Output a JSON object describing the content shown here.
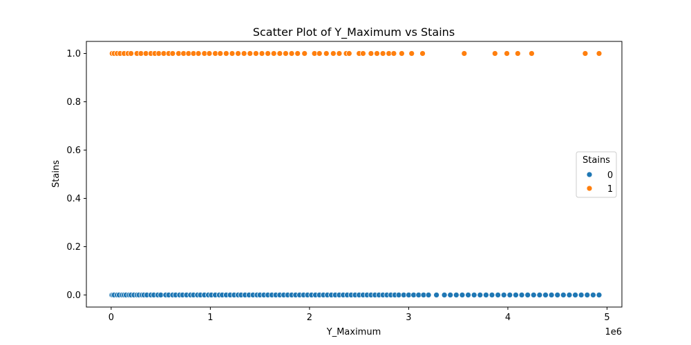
{
  "chart_data": {
    "type": "scatter",
    "title": "Scatter Plot of Y_Maximum vs Stains",
    "xlabel": "Y_Maximum",
    "ylabel": "Stains",
    "x_offset_label": "1e6",
    "xlim": [
      -250000,
      5150000
    ],
    "ylim": [
      -0.05,
      1.05
    ],
    "x_ticks": [
      0,
      1000000,
      2000000,
      3000000,
      4000000,
      5000000
    ],
    "x_tick_labels": [
      "0",
      "1",
      "2",
      "3",
      "4",
      "5"
    ],
    "y_ticks": [
      0.0,
      0.2,
      0.4,
      0.6,
      0.8,
      1.0
    ],
    "y_tick_labels": [
      "0.0",
      "0.2",
      "0.4",
      "0.6",
      "0.8",
      "1.0"
    ],
    "grid": false,
    "legend": {
      "title": "Stains",
      "placement": "center-right",
      "entries": [
        "0",
        "1"
      ]
    },
    "series": [
      {
        "name": "0",
        "color": "#1f77b4",
        "points": [
          [
            5000,
            0
          ],
          [
            15000,
            0
          ],
          [
            30000,
            0
          ],
          [
            60000,
            0
          ],
          [
            80000,
            0
          ],
          [
            110000,
            0
          ],
          [
            130000,
            0
          ],
          [
            150000,
            0
          ],
          [
            180000,
            0
          ],
          [
            200000,
            0
          ],
          [
            230000,
            0
          ],
          [
            260000,
            0
          ],
          [
            280000,
            0
          ],
          [
            310000,
            0
          ],
          [
            330000,
            0
          ],
          [
            360000,
            0
          ],
          [
            400000,
            0
          ],
          [
            430000,
            0
          ],
          [
            470000,
            0
          ],
          [
            500000,
            0
          ],
          [
            550000,
            0
          ],
          [
            580000,
            0
          ],
          [
            620000,
            0
          ],
          [
            650000,
            0
          ],
          [
            690000,
            0
          ],
          [
            720000,
            0
          ],
          [
            760000,
            0
          ],
          [
            800000,
            0
          ],
          [
            830000,
            0
          ],
          [
            870000,
            0
          ],
          [
            900000,
            0
          ],
          [
            940000,
            0
          ],
          [
            980000,
            0
          ],
          [
            1010000,
            0
          ],
          [
            1050000,
            0
          ],
          [
            1090000,
            0
          ],
          [
            1120000,
            0
          ],
          [
            1160000,
            0
          ],
          [
            1200000,
            0
          ],
          [
            1240000,
            0
          ],
          [
            1280000,
            0
          ],
          [
            1310000,
            0
          ],
          [
            1350000,
            0
          ],
          [
            1390000,
            0
          ],
          [
            1430000,
            0
          ],
          [
            1470000,
            0
          ],
          [
            1500000,
            0
          ],
          [
            1540000,
            0
          ],
          [
            1580000,
            0
          ],
          [
            1620000,
            0
          ],
          [
            1660000,
            0
          ],
          [
            1700000,
            0
          ],
          [
            1740000,
            0
          ],
          [
            1780000,
            0
          ],
          [
            1820000,
            0
          ],
          [
            1860000,
            0
          ],
          [
            1900000,
            0
          ],
          [
            1940000,
            0
          ],
          [
            1980000,
            0
          ],
          [
            2020000,
            0
          ],
          [
            2060000,
            0
          ],
          [
            2100000,
            0
          ],
          [
            2140000,
            0
          ],
          [
            2180000,
            0
          ],
          [
            2220000,
            0
          ],
          [
            2260000,
            0
          ],
          [
            2300000,
            0
          ],
          [
            2340000,
            0
          ],
          [
            2380000,
            0
          ],
          [
            2420000,
            0
          ],
          [
            2460000,
            0
          ],
          [
            2500000,
            0
          ],
          [
            2540000,
            0
          ],
          [
            2580000,
            0
          ],
          [
            2620000,
            0
          ],
          [
            2660000,
            0
          ],
          [
            2700000,
            0
          ],
          [
            2740000,
            0
          ],
          [
            2780000,
            0
          ],
          [
            2820000,
            0
          ],
          [
            2860000,
            0
          ],
          [
            2900000,
            0
          ],
          [
            2950000,
            0
          ],
          [
            3000000,
            0
          ],
          [
            3050000,
            0
          ],
          [
            3100000,
            0
          ],
          [
            3150000,
            0
          ],
          [
            3200000,
            0
          ],
          [
            3280000,
            0
          ],
          [
            3360000,
            0
          ],
          [
            3420000,
            0
          ],
          [
            3480000,
            0
          ],
          [
            3540000,
            0
          ],
          [
            3600000,
            0
          ],
          [
            3660000,
            0
          ],
          [
            3720000,
            0
          ],
          [
            3780000,
            0
          ],
          [
            3840000,
            0
          ],
          [
            3900000,
            0
          ],
          [
            3960000,
            0
          ],
          [
            4020000,
            0
          ],
          [
            4080000,
            0
          ],
          [
            4140000,
            0
          ],
          [
            4200000,
            0
          ],
          [
            4260000,
            0
          ],
          [
            4320000,
            0
          ],
          [
            4380000,
            0
          ],
          [
            4440000,
            0
          ],
          [
            4500000,
            0
          ],
          [
            4560000,
            0
          ],
          [
            4620000,
            0
          ],
          [
            4680000,
            0
          ],
          [
            4740000,
            0
          ],
          [
            4800000,
            0
          ],
          [
            4860000,
            0
          ],
          [
            4920000,
            0
          ]
        ]
      },
      {
        "name": "1",
        "color": "#ff7f0e",
        "points": [
          [
            10000,
            1
          ],
          [
            30000,
            1
          ],
          [
            60000,
            1
          ],
          [
            90000,
            1
          ],
          [
            130000,
            1
          ],
          [
            170000,
            1
          ],
          [
            200000,
            1
          ],
          [
            260000,
            1
          ],
          [
            300000,
            1
          ],
          [
            350000,
            1
          ],
          [
            400000,
            1
          ],
          [
            440000,
            1
          ],
          [
            480000,
            1
          ],
          [
            530000,
            1
          ],
          [
            580000,
            1
          ],
          [
            620000,
            1
          ],
          [
            680000,
            1
          ],
          [
            730000,
            1
          ],
          [
            780000,
            1
          ],
          [
            830000,
            1
          ],
          [
            880000,
            1
          ],
          [
            940000,
            1
          ],
          [
            990000,
            1
          ],
          [
            1050000,
            1
          ],
          [
            1100000,
            1
          ],
          [
            1160000,
            1
          ],
          [
            1220000,
            1
          ],
          [
            1280000,
            1
          ],
          [
            1340000,
            1
          ],
          [
            1400000,
            1
          ],
          [
            1460000,
            1
          ],
          [
            1520000,
            1
          ],
          [
            1580000,
            1
          ],
          [
            1640000,
            1
          ],
          [
            1700000,
            1
          ],
          [
            1760000,
            1
          ],
          [
            1820000,
            1
          ],
          [
            1880000,
            1
          ],
          [
            1950000,
            1
          ],
          [
            2050000,
            1
          ],
          [
            2100000,
            1
          ],
          [
            2170000,
            1
          ],
          [
            2240000,
            1
          ],
          [
            2300000,
            1
          ],
          [
            2370000,
            1
          ],
          [
            2400000,
            1
          ],
          [
            2500000,
            1
          ],
          [
            2540000,
            1
          ],
          [
            2620000,
            1
          ],
          [
            2680000,
            1
          ],
          [
            2740000,
            1
          ],
          [
            2800000,
            1
          ],
          [
            2850000,
            1
          ],
          [
            2930000,
            1
          ],
          [
            3030000,
            1
          ],
          [
            3140000,
            1
          ],
          [
            3560000,
            1
          ],
          [
            3870000,
            1
          ],
          [
            3990000,
            1
          ],
          [
            4100000,
            1
          ],
          [
            4240000,
            1
          ],
          [
            4780000,
            1
          ],
          [
            4920000,
            1
          ]
        ]
      }
    ]
  }
}
